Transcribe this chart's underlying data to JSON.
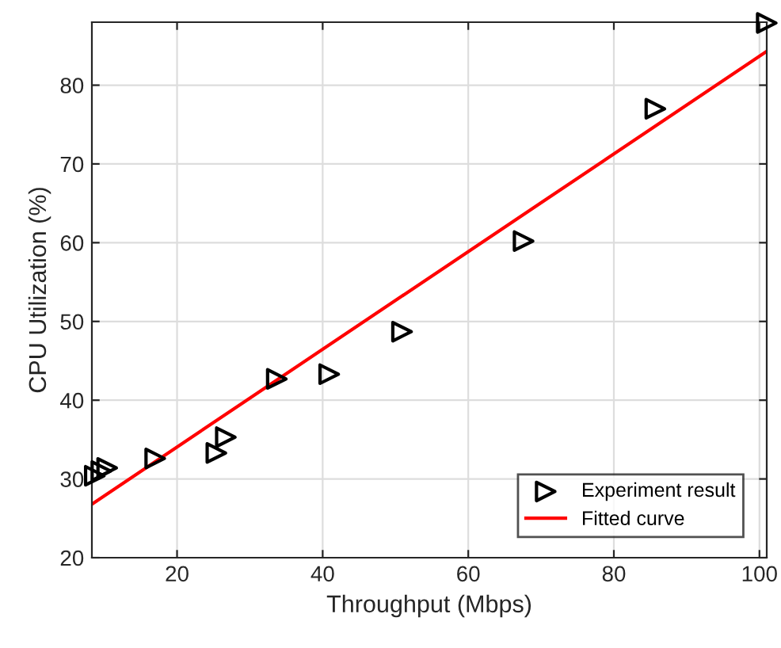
{
  "chart_data": {
    "type": "scatter",
    "xlabel": "Throughput (Mbps)",
    "ylabel": "CPU Utilization (%)",
    "xlim": [
      8.3,
      101
    ],
    "ylim": [
      20,
      88
    ],
    "xticks": [
      20,
      40,
      60,
      80,
      100
    ],
    "yticks": [
      20,
      30,
      40,
      50,
      60,
      70,
      80
    ],
    "grid": true,
    "legend": "bottom right",
    "series": [
      {
        "name": "Experiment result",
        "marker": "triangle",
        "color": "#000000",
        "x": [
          8.7,
          9.6,
          10.4,
          17,
          25.4,
          26.7,
          33.7,
          40.9,
          50.9,
          67.6,
          85.7,
          101
        ],
        "values": [
          30.4,
          31.0,
          31.4,
          32.6,
          33.3,
          35.3,
          42.7,
          43.3,
          48.7,
          60.2,
          77.0,
          87.9
        ]
      },
      {
        "name": "Fitted curve",
        "type": "line",
        "marker": "none",
        "color": "#ff0000",
        "x": [
          8.3,
          101
        ],
        "values": [
          26.8,
          84.3
        ]
      }
    ]
  }
}
